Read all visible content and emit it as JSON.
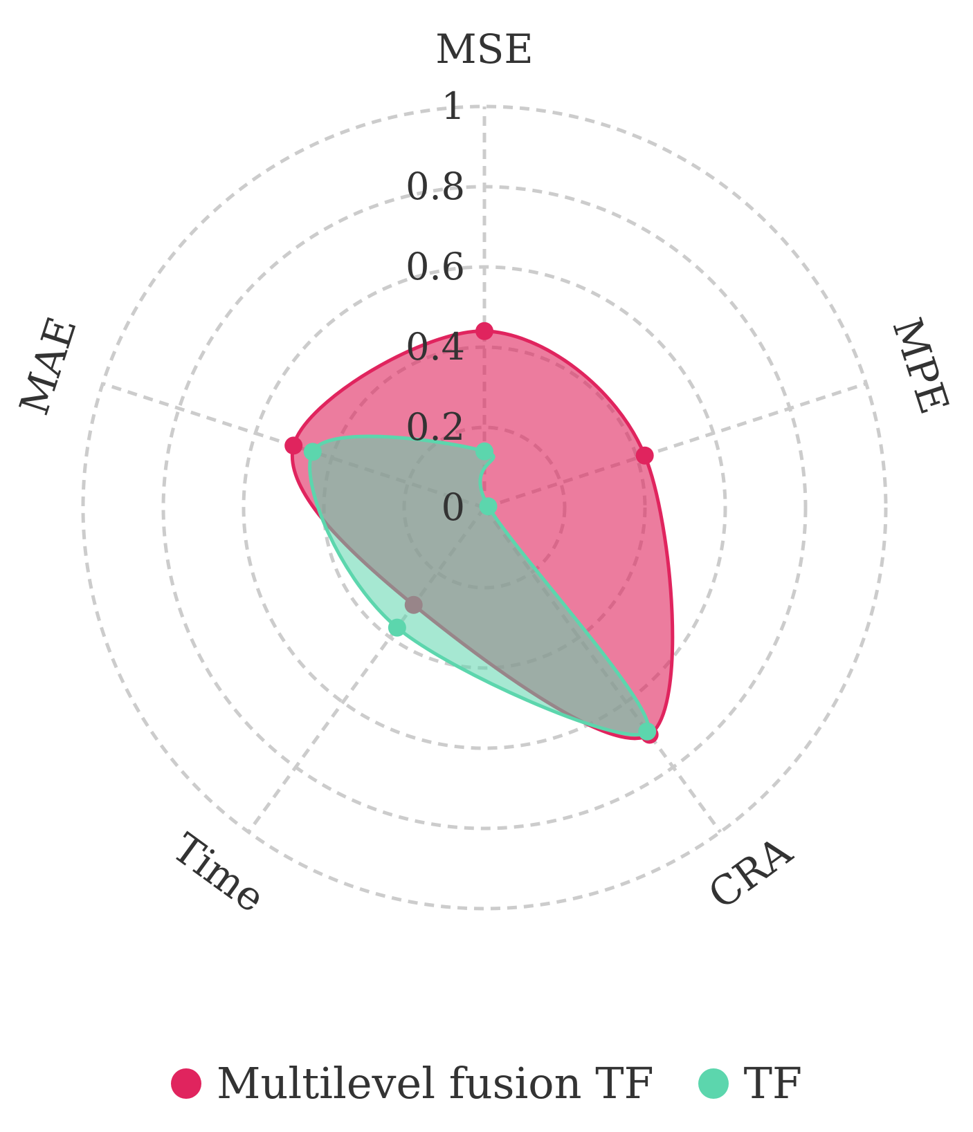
{
  "chart_data": {
    "type": "radar",
    "axes": [
      "MSE",
      "MPE",
      "CRA",
      "Time",
      "MAE"
    ],
    "rlim": [
      0,
      1
    ],
    "ticks": [
      "0",
      "0.2",
      "0.4",
      "0.6",
      "0.8",
      "1"
    ],
    "grid": true,
    "legend_position": "bottom",
    "series": [
      {
        "name": "Multilevel fusion TF",
        "color": "#e0245e",
        "fill_color": "rgba(224,36,94,0.6)",
        "values": [
          0.44,
          0.42,
          0.7,
          0.3,
          0.5
        ]
      },
      {
        "name": "TF",
        "color": "#5cd6ad",
        "fill_color": "rgba(92,214,173,0.55)",
        "values": [
          0.14,
          0.01,
          0.69,
          0.37,
          0.45
        ]
      }
    ]
  }
}
